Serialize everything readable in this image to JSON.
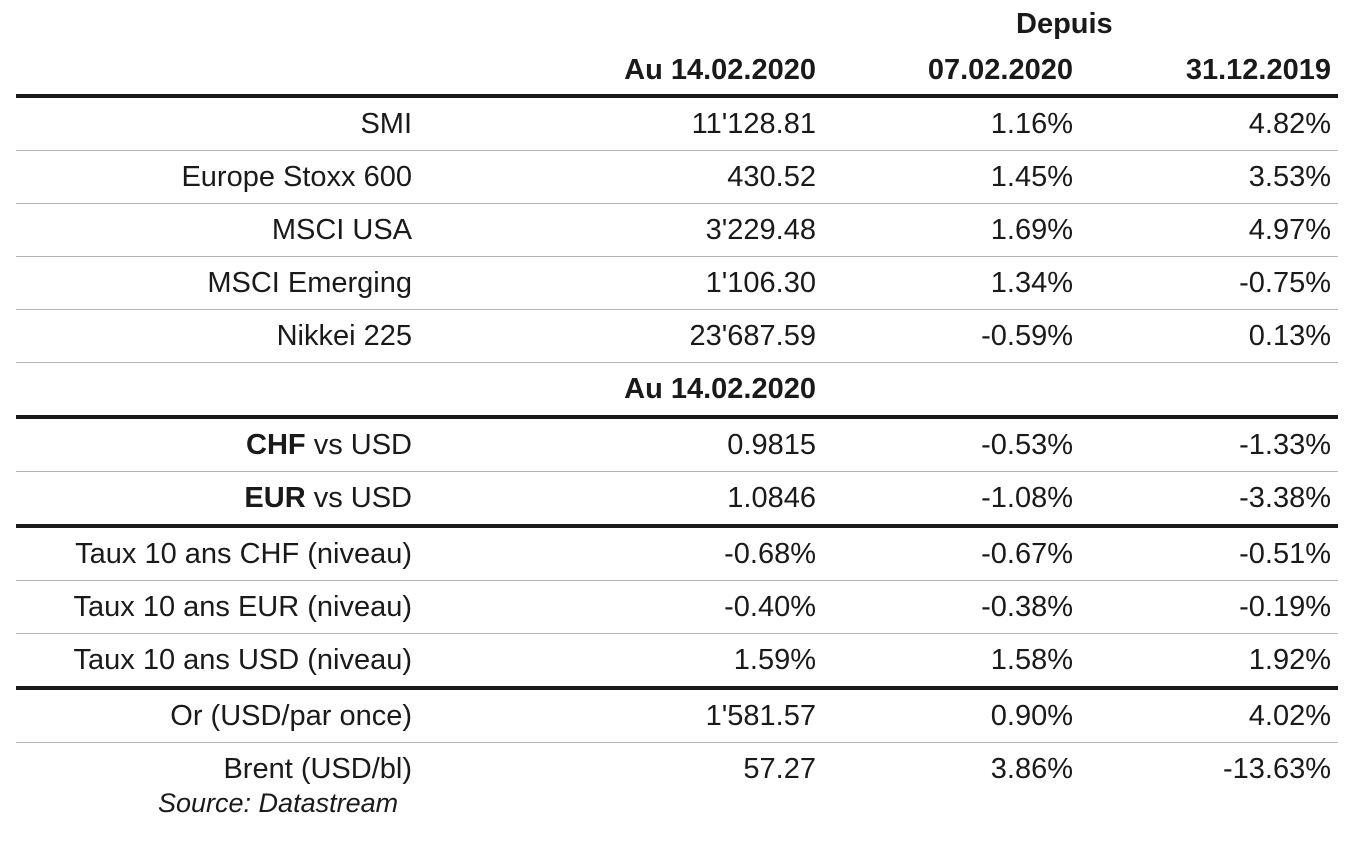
{
  "header": {
    "depuis": "Depuis",
    "col1": "Au 14.02.2020",
    "col2": "07.02.2020",
    "col3": "31.12.2019"
  },
  "rows": [
    {
      "label": "SMI",
      "v1": "11'128.81",
      "v2": "1.16%",
      "v3": "4.82%"
    },
    {
      "label": "Europe Stoxx 600",
      "v1": "430.52",
      "v2": "1.45%",
      "v3": "3.53%"
    },
    {
      "label": "MSCI USA",
      "v1": "3'229.48",
      "v2": "1.69%",
      "v3": "4.97%"
    },
    {
      "label": "MSCI Emerging",
      "v1": "1'106.30",
      "v2": "1.34%",
      "v3": "-0.75%"
    },
    {
      "label": "Nikkei 225",
      "v1": "23'687.59",
      "v2": "-0.59%",
      "v3": "0.13%"
    }
  ],
  "subheader": {
    "col1": "Au 14.02.2020"
  },
  "fx_rows": [
    {
      "label_bold": "CHF",
      "label_rest": " vs USD",
      "v1": "0.9815",
      "v2": "-0.53%",
      "v3": "-1.33%"
    },
    {
      "label_bold": "EUR",
      "label_rest": " vs USD",
      "v1": "1.0846",
      "v2": "-1.08%",
      "v3": "-3.38%"
    }
  ],
  "rate_rows": [
    {
      "label": "Taux 10 ans CHF (niveau)",
      "v1": "-0.68%",
      "v2": "-0.67%",
      "v3": "-0.51%"
    },
    {
      "label": "Taux 10 ans EUR (niveau)",
      "v1": "-0.40%",
      "v2": "-0.38%",
      "v3": "-0.19%"
    },
    {
      "label": "Taux 10 ans USD (niveau)",
      "v1": "1.59%",
      "v2": "1.58%",
      "v3": "1.92%"
    }
  ],
  "commodity_rows": [
    {
      "label": "Or (USD/par once)",
      "v1": "1'581.57",
      "v2": "0.90%",
      "v3": "4.02%"
    },
    {
      "label": "Brent (USD/bl)",
      "v1": "57.27",
      "v2": "3.86%",
      "v3": "-13.63%"
    }
  ],
  "source": "Source: Datastream"
}
